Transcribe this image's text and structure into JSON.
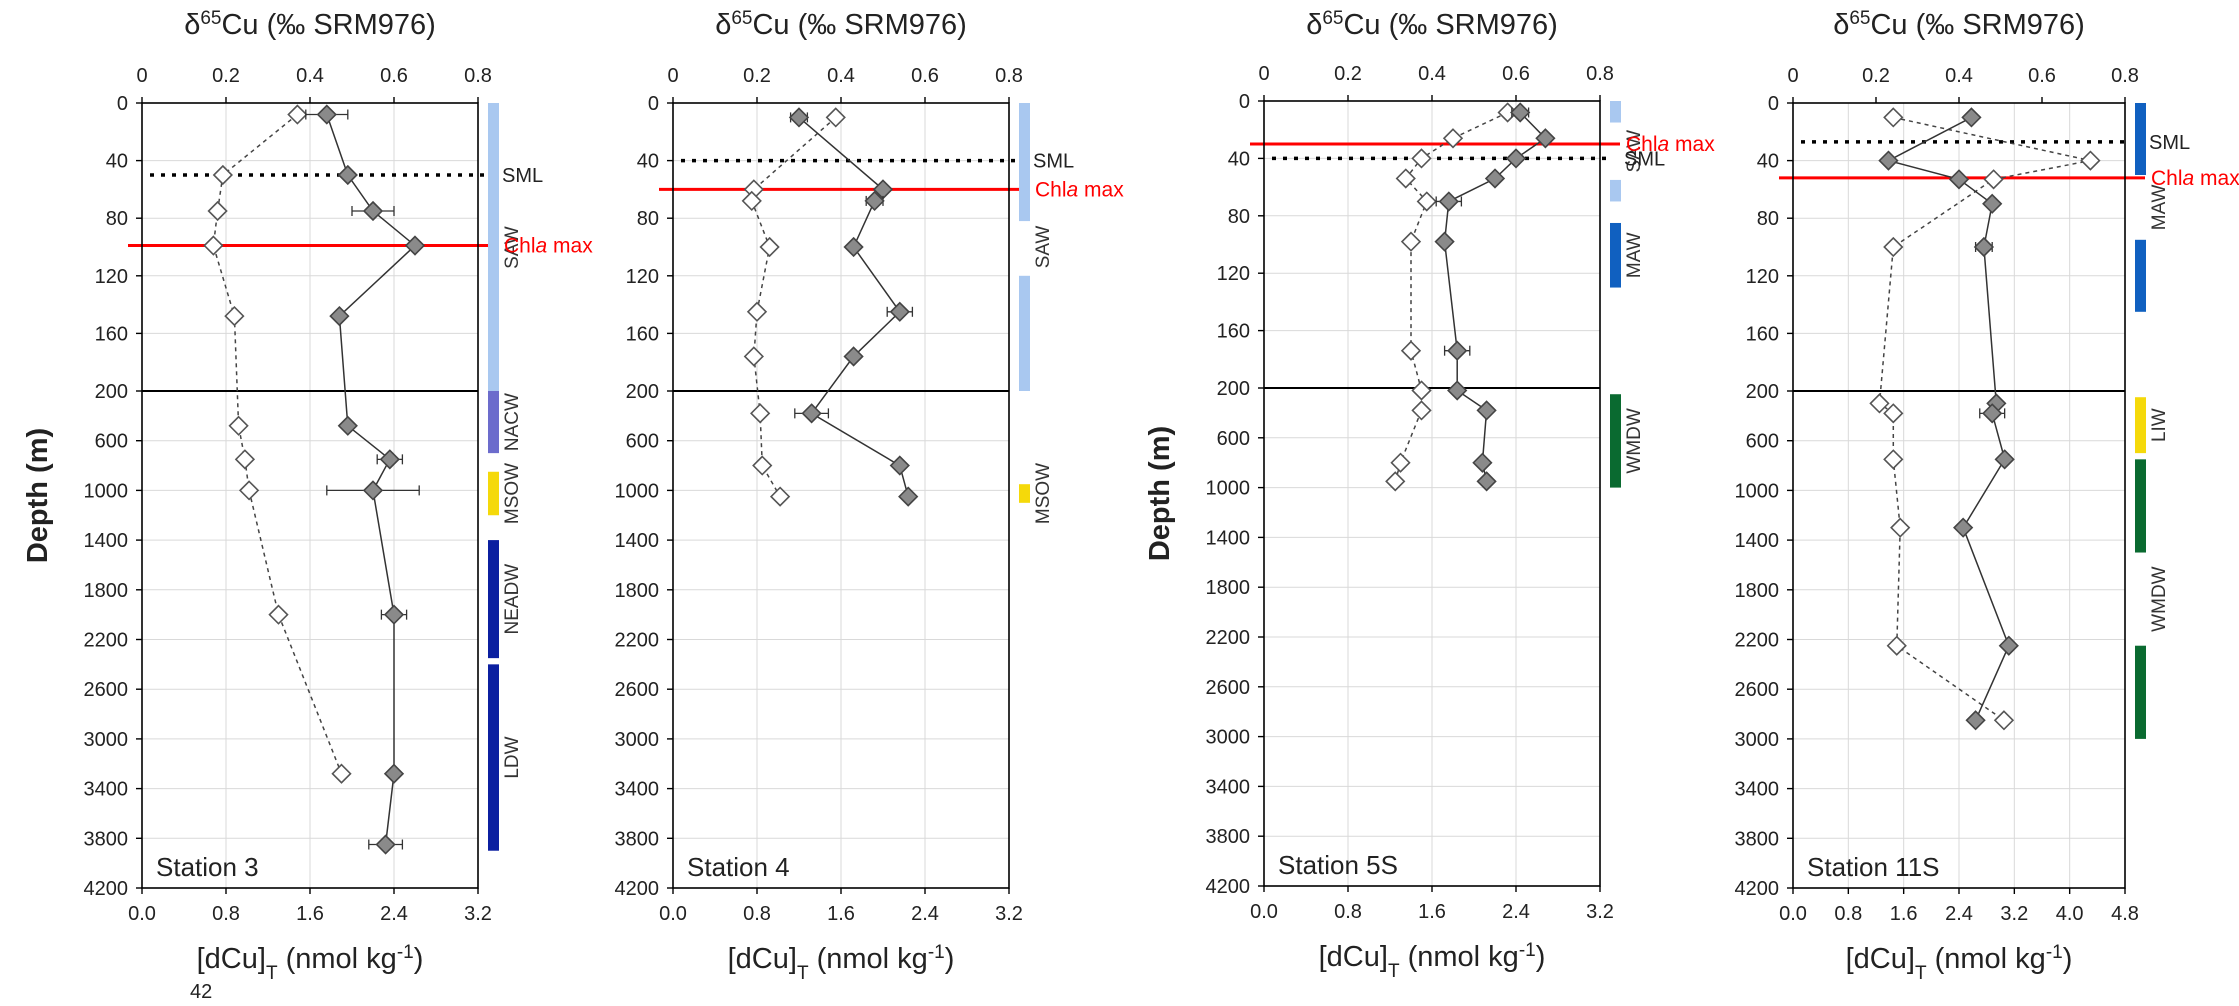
{
  "page_number": "42",
  "chart_data": [
    {
      "type": "scatter",
      "station_label": "Station 3",
      "top_axis": {
        "label_html": "δ<tspan baseline-shift=\"super\" font-size=\"19\">65</tspan>Cu (‰ SRM976)",
        "ticks": [
          "0",
          "0.2",
          "0.4",
          "0.6",
          "0.8"
        ],
        "range": [
          0,
          0.8
        ]
      },
      "bottom_axis": {
        "label_html": "[dCu]<tspan baseline-shift=\"sub\" font-size=\"19\">T</tspan> (nmol kg<tspan baseline-shift=\"super\" font-size=\"19\">-1</tspan>)",
        "ticks": [
          "0.0",
          "0.8",
          "1.6",
          "2.4",
          "3.2"
        ],
        "range": [
          0,
          3.2
        ]
      },
      "y_axis": {
        "label": "Depth (m)",
        "ticks": [
          "0",
          "40",
          "80",
          "120",
          "160",
          "200",
          "600",
          "1000",
          "1400",
          "1800",
          "2200",
          "2600",
          "3000",
          "3400",
          "3800",
          "4200"
        ],
        "break": "linear 0-200 m, then 200-4200 m"
      },
      "series": [
        {
          "role": "dCu",
          "style": "open-diamond-dashed",
          "points": [
            [
              1.48,
              8
            ],
            [
              0.77,
              50
            ],
            [
              0.72,
              75
            ],
            [
              0.68,
              99
            ],
            [
              0.88,
              148
            ],
            [
              0.92,
              480
            ],
            [
              0.98,
              750
            ],
            [
              1.02,
              1000
            ],
            [
              1.3,
              2000
            ],
            [
              1.9,
              3280
            ]
          ]
        },
        {
          "role": "d65Cu",
          "style": "filled-diamond-solid",
          "points": [
            [
              0.44,
              8,
              0.05
            ],
            [
              0.49,
              50,
              0
            ],
            [
              0.55,
              75,
              0.05
            ],
            [
              0.65,
              99,
              0
            ],
            [
              0.47,
              148,
              0
            ],
            [
              0.49,
              480,
              0
            ],
            [
              0.59,
              750,
              0.03
            ],
            [
              0.55,
              1000,
              0.11
            ],
            [
              0.6,
              2000,
              0.03
            ],
            [
              0.6,
              3280,
              0
            ],
            [
              0.58,
              3850,
              0.04
            ]
          ]
        }
      ],
      "lines": [
        {
          "depth": 50,
          "label": "SML",
          "style": "dotted"
        },
        {
          "depth": 99,
          "label": "Chla max",
          "style": "red"
        }
      ],
      "water_masses": [
        {
          "name": "SAW",
          "bars": [
            [
              0,
              210
            ]
          ],
          "color": "#a9c8f0"
        },
        {
          "name": "NACW",
          "bars": [
            [
              200,
              700
            ]
          ],
          "color": "#6c6ccc"
        },
        {
          "name": "MSOW",
          "bars": [
            [
              850,
              1200
            ]
          ],
          "color": "#f5d90a"
        },
        {
          "name": "NEADW",
          "bars": [
            [
              1400,
              2350
            ]
          ],
          "color": "#0b1fa0"
        },
        {
          "name": "LDW",
          "bars": [
            [
              2400,
              3900
            ]
          ],
          "color": "#0b1fa0"
        }
      ]
    },
    {
      "type": "scatter",
      "station_label": "Station 4",
      "top_axis": {
        "label_html": "δ<tspan baseline-shift=\"super\" font-size=\"19\">65</tspan>Cu (‰ SRM976)",
        "ticks": [
          "0",
          "0.2",
          "0.4",
          "0.6",
          "0.8"
        ],
        "range": [
          0,
          0.8
        ]
      },
      "bottom_axis": {
        "label_html": "[dCu]<tspan baseline-shift=\"sub\" font-size=\"19\">T</tspan> (nmol kg<tspan baseline-shift=\"super\" font-size=\"19\">-1</tspan>)",
        "ticks": [
          "0.0",
          "0.8",
          "1.6",
          "2.4",
          "3.2"
        ],
        "range": [
          0,
          3.2
        ]
      },
      "y_axis": {
        "label": "",
        "ticks": [
          "0",
          "40",
          "80",
          "120",
          "160",
          "200",
          "600",
          "1000",
          "1400",
          "1800",
          "2200",
          "2600",
          "3000",
          "3400",
          "3800",
          "4200"
        ],
        "break": "linear 0-200 m, then 200-4200 m"
      },
      "series": [
        {
          "role": "dCu",
          "style": "open-diamond-dashed",
          "points": [
            [
              1.55,
              10
            ],
            [
              0.77,
              60
            ],
            [
              0.75,
              68
            ],
            [
              0.92,
              100
            ],
            [
              0.8,
              145
            ],
            [
              0.77,
              176
            ],
            [
              0.83,
              380
            ],
            [
              0.85,
              800
            ],
            [
              1.02,
              1050
            ]
          ]
        },
        {
          "role": "d65Cu",
          "style": "filled-diamond-solid",
          "points": [
            [
              0.3,
              10,
              0.02
            ],
            [
              0.5,
              60,
              0
            ],
            [
              0.48,
              68,
              0.02
            ],
            [
              0.43,
              100,
              0
            ],
            [
              0.54,
              145,
              0.03
            ],
            [
              0.43,
              176,
              0
            ],
            [
              0.33,
              380,
              0.04
            ],
            [
              0.54,
              800,
              0
            ],
            [
              0.56,
              1050,
              0
            ]
          ]
        }
      ],
      "lines": [
        {
          "depth": 40,
          "label": "SML",
          "style": "dotted"
        },
        {
          "depth": 60,
          "label": "Chla max",
          "style": "red"
        }
      ],
      "water_masses": [
        {
          "name": "SAW",
          "bars": [
            [
              0,
              82
            ],
            [
              120,
              200
            ]
          ],
          "color": "#a9c8f0"
        },
        {
          "name": "MSOW",
          "bars": [
            [
              950,
              1100
            ]
          ],
          "color": "#f5d90a"
        }
      ]
    },
    {
      "type": "scatter",
      "station_label": "Station 5S",
      "top_axis": {
        "label_html": "δ<tspan baseline-shift=\"super\" font-size=\"19\">65</tspan>Cu (‰ SRM976)",
        "ticks": [
          "0",
          "0.2",
          "0.4",
          "0.6",
          "0.8"
        ],
        "range": [
          0,
          0.8
        ]
      },
      "bottom_axis": {
        "label_html": "[dCu]<tspan baseline-shift=\"sub\" font-size=\"19\">T</tspan> (nmol kg<tspan baseline-shift=\"super\" font-size=\"19\">-1</tspan>)",
        "ticks": [
          "0.0",
          "0.8",
          "1.6",
          "2.4",
          "3.2"
        ],
        "range": [
          0,
          3.2
        ]
      },
      "y_axis": {
        "label": "Depth (m)",
        "ticks": [
          "0",
          "40",
          "80",
          "120",
          "160",
          "200",
          "600",
          "1000",
          "1400",
          "1800",
          "2200",
          "2600",
          "3000",
          "3400",
          "3800",
          "4200"
        ],
        "break": "linear 0-200 m, then 200-4200 m"
      },
      "series": [
        {
          "role": "dCu",
          "style": "open-diamond-dashed",
          "points": [
            [
              2.32,
              8
            ],
            [
              1.8,
              26
            ],
            [
              1.5,
              40
            ],
            [
              1.35,
              54
            ],
            [
              1.55,
              70
            ],
            [
              1.4,
              98
            ],
            [
              1.4,
              174
            ],
            [
              1.5,
              220
            ],
            [
              1.5,
              380
            ],
            [
              1.3,
              800
            ],
            [
              1.25,
              950
            ]
          ]
        },
        {
          "role": "d65Cu",
          "style": "filled-diamond-solid",
          "points": [
            [
              0.61,
              8,
              0.02
            ],
            [
              0.67,
              26,
              0
            ],
            [
              0.6,
              40,
              0
            ],
            [
              0.55,
              54,
              0
            ],
            [
              0.44,
              70,
              0.03
            ],
            [
              0.43,
              98,
              0
            ],
            [
              0.46,
              174,
              0.03
            ],
            [
              0.46,
              220,
              0
            ],
            [
              0.53,
              380,
              0
            ],
            [
              0.52,
              800,
              0
            ],
            [
              0.53,
              950,
              0
            ]
          ]
        }
      ],
      "lines": [
        {
          "depth": 30,
          "label": "Chla max",
          "style": "red"
        },
        {
          "depth": 40,
          "label": "SML",
          "style": "dotted"
        }
      ],
      "water_masses": [
        {
          "name": "SAW",
          "bars": [
            [
              0,
              15
            ],
            [
              55,
              70
            ]
          ],
          "color": "#a9c8f0"
        },
        {
          "name": "MAW",
          "bars": [
            [
              85,
              130
            ]
          ],
          "color": "#1060c0"
        },
        {
          "name": "WMDW",
          "bars": [
            [
              250,
              1000
            ]
          ],
          "color": "#0a6a30"
        }
      ]
    },
    {
      "type": "scatter",
      "station_label": "Station 11S",
      "top_axis": {
        "label_html": "δ<tspan baseline-shift=\"super\" font-size=\"19\">65</tspan>Cu (‰ SRM976)",
        "ticks": [
          "0",
          "0.2",
          "0.4",
          "0.6",
          "0.8"
        ],
        "range": [
          0,
          0.8
        ]
      },
      "bottom_axis": {
        "label_html": "[dCu]<tspan baseline-shift=\"sub\" font-size=\"19\">T</tspan> (nmol kg<tspan baseline-shift=\"super\" font-size=\"19\">-1</tspan>)",
        "ticks": [
          "0.0",
          "0.8",
          "1.6",
          "2.4",
          "3.2",
          "4.0",
          "4.8"
        ],
        "range": [
          0,
          4.8
        ]
      },
      "y_axis": {
        "label": "",
        "ticks": [
          "0",
          "40",
          "80",
          "120",
          "160",
          "200",
          "600",
          "1000",
          "1400",
          "1800",
          "2200",
          "2600",
          "3000",
          "3400",
          "3800",
          "4200"
        ],
        "break": "linear 0-200 m, then 200-4200 m"
      },
      "series": [
        {
          "role": "dCu",
          "style": "open-diamond-dashed",
          "points": [
            [
              1.45,
              10
            ],
            [
              4.3,
              40
            ],
            [
              2.9,
              53
            ],
            [
              1.45,
              100
            ],
            [
              1.25,
              300
            ],
            [
              1.45,
              380
            ],
            [
              1.45,
              750
            ],
            [
              1.55,
              1300
            ],
            [
              1.5,
              2250
            ],
            [
              3.05,
              2850
            ]
          ]
        },
        {
          "role": "d65Cu",
          "style": "filled-diamond-solid",
          "points": [
            [
              0.43,
              10,
              0
            ],
            [
              0.23,
              40,
              0
            ],
            [
              0.4,
              53,
              0
            ],
            [
              0.48,
              70,
              0
            ],
            [
              0.46,
              100,
              0.02
            ],
            [
              0.49,
              300,
              0
            ],
            [
              0.48,
              380,
              0.03
            ],
            [
              0.51,
              750,
              0
            ],
            [
              0.41,
              1300,
              0
            ],
            [
              0.52,
              2250,
              0
            ],
            [
              0.44,
              2850,
              0
            ]
          ]
        }
      ],
      "lines": [
        {
          "depth": 27,
          "label": "SML",
          "style": "dotted"
        },
        {
          "depth": 52,
          "label": "Chla max",
          "style": "red"
        }
      ],
      "water_masses": [
        {
          "name": "MAW",
          "bars": [
            [
              0,
              50
            ],
            [
              95,
              145
            ]
          ],
          "color": "#1060c0"
        },
        {
          "name": "LIW",
          "bars": [
            [
              250,
              700
            ]
          ],
          "color": "#f5d90a"
        },
        {
          "name": "WMDW",
          "bars": [
            [
              750,
              1500
            ],
            [
              2250,
              3000
            ]
          ],
          "color": "#0a6a30"
        }
      ]
    }
  ]
}
